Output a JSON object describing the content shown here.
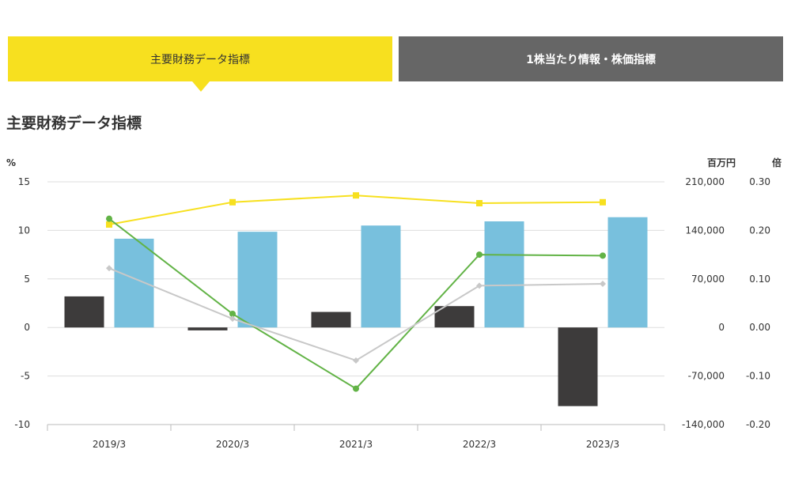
{
  "tabs": [
    {
      "label": "主要財務データ指標",
      "active": true
    },
    {
      "label": "1株当たり情報・株価指標",
      "active": false
    }
  ],
  "section_title": "主要財務データ指標",
  "colors": {
    "tab_active": "#f7e01f",
    "tab_inactive": "#666666",
    "bar_dark": "#3d3b3b",
    "bar_blue": "#78c0dd",
    "line_yellow": "#f7e01f",
    "line_green": "#62b346",
    "line_gray": "#c8c8c8"
  },
  "chart_data": {
    "type": "bar",
    "categories": [
      "2019/3",
      "2020/3",
      "2021/3",
      "2022/3",
      "2023/3"
    ],
    "left_axis": {
      "unit": "%",
      "ylim": [
        -10,
        15
      ],
      "ticks": [
        "15",
        "10",
        "5",
        "0",
        "-5",
        "-10"
      ]
    },
    "middle_axis": {
      "unit": "百万円",
      "ylim": [
        -140000,
        210000
      ],
      "ticks": [
        "210,000",
        "140,000",
        "70,000",
        "0",
        "-70,000",
        "-140,000"
      ]
    },
    "right_axis": {
      "unit": "倍",
      "ylim": [
        -0.2,
        0.3
      ],
      "ticks": [
        "0.30",
        "0.20",
        "0.10",
        "0.00",
        "-0.10",
        "-0.20"
      ]
    },
    "grid": true,
    "series": [
      {
        "type": "bar",
        "axis": "left",
        "color": "#3d3b3b",
        "values": [
          3.2,
          -0.3,
          1.6,
          2.2,
          -8.1
        ]
      },
      {
        "type": "bar",
        "axis": "middle",
        "color": "#78c0dd",
        "values": [
          128000,
          138000,
          147000,
          153000,
          159000
        ]
      },
      {
        "type": "line",
        "axis": "left",
        "color": "#f7e01f",
        "marker": "square",
        "values": [
          10.6,
          12.9,
          13.6,
          12.8,
          12.9
        ]
      },
      {
        "type": "line",
        "axis": "left",
        "color": "#62b346",
        "marker": "circle",
        "values": [
          11.2,
          1.4,
          -6.3,
          7.5,
          7.4
        ]
      },
      {
        "type": "line",
        "axis": "left",
        "color": "#c8c8c8",
        "marker": "diamond",
        "values": [
          6.1,
          0.9,
          -3.4,
          4.3,
          4.5
        ]
      }
    ]
  }
}
